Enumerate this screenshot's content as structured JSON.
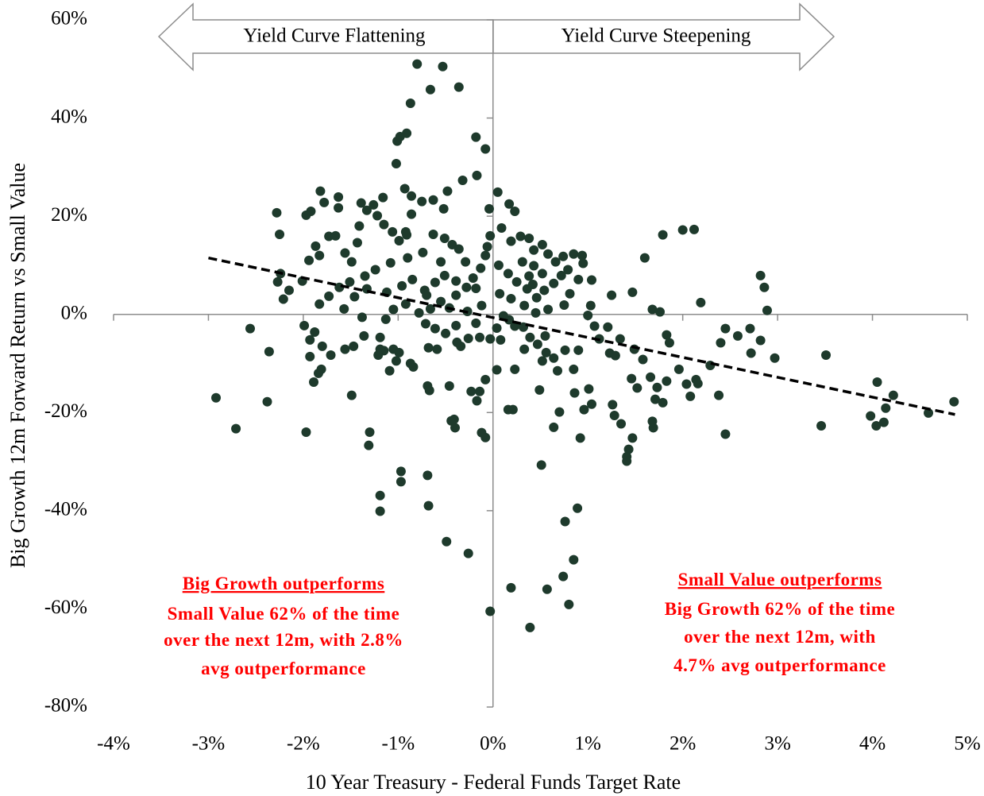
{
  "chart_data": {
    "type": "scatter",
    "xlabel": "10 Year Treasury  - Federal Funds Target Rate",
    "ylabel": "Big Growth  12m Forward Return vs Small Value",
    "xlim": [
      -4,
      5
    ],
    "ylim": [
      -80,
      60
    ],
    "xticks": [
      {
        "value": -4,
        "label": "-4%"
      },
      {
        "value": -3,
        "label": "-3%"
      },
      {
        "value": -2,
        "label": "-2%"
      },
      {
        "value": -1,
        "label": "-1%"
      },
      {
        "value": 0,
        "label": "0%"
      },
      {
        "value": 1,
        "label": "1%"
      },
      {
        "value": 2,
        "label": "2%"
      },
      {
        "value": 3,
        "label": "3%"
      },
      {
        "value": 4,
        "label": "4%"
      },
      {
        "value": 5,
        "label": "5%"
      }
    ],
    "yticks": [
      {
        "value": -80,
        "label": "-80%"
      },
      {
        "value": -60,
        "label": "-60%"
      },
      {
        "value": -40,
        "label": "-40%"
      },
      {
        "value": -20,
        "label": "-20%"
      },
      {
        "value": 0,
        "label": "0%"
      },
      {
        "value": 20,
        "label": "20%"
      },
      {
        "value": 40,
        "label": "40%"
      },
      {
        "value": 60,
        "label": "60%"
      }
    ],
    "color": "#1e3a2c",
    "x": [
      -2.92,
      -2.71,
      -2.56,
      -2.38,
      -2.36,
      -2.28,
      -2.25,
      -1.97,
      -1.3,
      -1.31,
      -1.19,
      -1.19,
      -0.97,
      -0.97,
      -0.69,
      -0.68,
      -0.49,
      -0.26,
      -0.03,
      0.19,
      0.39,
      0.51,
      0.57,
      0.74,
      0.76,
      0.8,
      0.85,
      0.89,
      -0.8,
      -0.53,
      -0.36,
      -0.66,
      -0.87,
      -0.91,
      -0.98,
      -1.01,
      -1.02,
      -0.32,
      -0.17,
      -0.18,
      -0.08,
      0.05,
      2.0,
      2.12,
      1.79,
      1.6,
      2.19,
      2.82,
      2.86,
      2.89,
      3.51,
      3.46,
      2.45,
      2.38,
      2.45,
      2.71,
      2.58,
      2.97,
      2.82,
      2.72,
      4.05,
      3.98,
      4.04,
      4.12,
      4.14,
      4.22,
      4.59,
      4.86,
      2.4,
      2.29,
      2.14,
      2.04,
      2.16,
      2.08,
      1.96,
      1.83,
      1.83,
      1.86,
      1.68,
      1.76,
      1.47,
      1.25,
      1.46,
      1.47,
      1.43,
      1.41,
      1.41,
      1.35,
      1.26,
      1.28,
      1.52,
      1.68,
      1.69,
      1.73,
      1.58,
      1.66,
      1.71,
      1.79,
      1.34,
      1.49,
      1.21,
      1.07,
      1.03,
      1,
      1.12,
      1.23,
      1.29,
      1.01,
      0.96,
      1.04,
      0.92,
      0.86,
      0.7,
      0.64,
      0.49,
      0.21,
      0.16,
      0.23,
      0.04,
      -0.08,
      -0.14,
      -0.17,
      -0.23,
      -0.08,
      -0.12,
      -0.41,
      -0.44,
      -0.4,
      -0.46,
      -0.69,
      -0.67,
      -0.87,
      -0.84,
      -1.09,
      -1.15,
      -1.19,
      -1.05,
      -1.21,
      -1.02,
      -0.99,
      -1.49,
      -1.56,
      -1.47,
      -1.71,
      -1.84,
      -1.81,
      -1.89,
      -1.8,
      -1.93,
      -1.88,
      -1.93,
      -1.99,
      -1.36,
      -1.38,
      -1.13,
      -1.19,
      -0.71,
      -0.61,
      -0.5,
      -0.38,
      -0.26,
      -0.34,
      -0.59,
      -0.68,
      -0.39,
      -0.18,
      -0.14,
      -0.03,
      0.04,
      0.11,
      0.17,
      0.23,
      0.32,
      0.39,
      0.47,
      0.55,
      0.56,
      0.64,
      0.76,
      0.9,
      0.85,
      0.68,
      0.52,
      0.33,
      0.08,
      -2.24,
      -2.27,
      -2.15,
      -2.21,
      -2.01,
      -1.94,
      -1.83,
      -1.97,
      -1.92,
      -1.82,
      -1.78,
      -1.63,
      -1.63,
      -1.73,
      -1.66,
      -1.87,
      -1.56,
      -1.49,
      -1.41,
      -1.43,
      -1.39,
      -1.33,
      -1.26,
      -1.16,
      -1.22,
      -1.15,
      -1.06,
      -0.99,
      -0.92,
      -0.93,
      -0.86,
      -0.75,
      -0.63,
      -0.48,
      -0.52,
      -0.86,
      -0.91,
      -0.63,
      -0.51,
      -0.43,
      -0.36,
      -0.29,
      -0.55,
      -0.74,
      -0.9,
      -1.08,
      -1.24,
      -1.35,
      -1.51,
      -1.62,
      -1.73,
      -1.83,
      -1.57,
      -1.46,
      -1.33,
      -1.12,
      -0.96,
      -0.85,
      -0.72,
      -0.61,
      -0.51,
      -0.39,
      -0.28,
      -0.21,
      -0.13,
      -0.08,
      -0.06,
      -0.03,
      -0.04,
      0.17,
      0.23,
      0.09,
      0.19,
      0.29,
      0.38,
      0.43,
      0.52,
      0.58,
      0.66,
      0.74,
      0.85,
      0.94,
      0.95,
      1.04,
      0.9,
      0.79,
      0.72,
      0.64,
      0.54,
      0.46,
      0.36,
      0.25,
      0.16,
      0.06,
      0.07,
      0.19,
      0.33,
      0.45,
      0.58,
      0.75,
      0.81,
      -0.12,
      -0.27,
      -0.46,
      -0.55,
      -0.66,
      -0.78,
      -0.92,
      -1.05,
      -0.7,
      -0.39,
      -0.18,
      0.43,
      0.38,
      0.31,
      0.42,
      0.52
    ],
    "values": [
      -17,
      -23.3,
      -2.9,
      -17.8,
      -7.6,
      20.7,
      16.3,
      -24,
      -24,
      -26.7,
      -36.9,
      -40.1,
      -32,
      -34.1,
      -32.8,
      -39,
      -46.3,
      -48.7,
      -60.5,
      -55.7,
      -63.8,
      -30.7,
      -56,
      -53.4,
      -42.2,
      -59.1,
      -50,
      -39.5,
      51,
      50.5,
      46.3,
      45.8,
      43,
      36.9,
      36.2,
      35.3,
      30.7,
      27.3,
      28.3,
      36.1,
      33.7,
      24.9,
      17.2,
      17.3,
      16.2,
      11.5,
      2.4,
      7.9,
      5.5,
      0.8,
      -8.3,
      -22.7,
      -24.4,
      -16.5,
      -2.9,
      -2.9,
      -4.4,
      -8.9,
      -5.3,
      -7.9,
      -13.8,
      -20.7,
      -22.7,
      -22,
      -19.1,
      -16.5,
      -20.1,
      -17.8,
      -5.8,
      -10.4,
      -13.3,
      -14.2,
      -14.1,
      -16.7,
      -11.2,
      -13.6,
      -4.2,
      -5.8,
      1,
      0.5,
      4.5,
      3.9,
      -13.1,
      -25.2,
      -27.5,
      -29,
      -29.9,
      -22.3,
      -18.4,
      -20.6,
      -15,
      -21.8,
      -23.1,
      -14.9,
      -9.2,
      -12.8,
      -17.3,
      -18,
      -5,
      -7.1,
      -2.6,
      -2.4,
      1.8,
      -0.2,
      -5,
      -7.9,
      -8.4,
      -15.2,
      -19.4,
      -18.3,
      -25.2,
      -16,
      -19.9,
      -23,
      -15.4,
      -19.4,
      -19.4,
      -11.2,
      -11.3,
      -13.3,
      -15.7,
      -17.6,
      -15.7,
      -25.1,
      -24.1,
      -21.4,
      -21.7,
      -23.1,
      -14.6,
      -14.6,
      -15.5,
      -10,
      -10.7,
      -11.5,
      -7.4,
      -7.1,
      -7.1,
      -8.3,
      -9.5,
      -7.8,
      -16.5,
      -7.1,
      -6.5,
      -8.3,
      -12,
      -11.2,
      -13.8,
      -6.5,
      -8.6,
      -3.6,
      -5.2,
      -2.3,
      -4.4,
      -0.6,
      -1,
      -4.7,
      -1.9,
      -2.9,
      -3.9,
      -5.7,
      -4.9,
      -6.5,
      -7.1,
      -6.8,
      -2.3,
      -1.8,
      -4.7,
      -5,
      -2.8,
      -0.3,
      -1.1,
      -2.4,
      -2.6,
      -4.7,
      -6.1,
      -4.4,
      -7.8,
      -8.9,
      -7.3,
      -7.3,
      -11.2,
      -11.5,
      -9.5,
      -7.1,
      -5.2,
      8.3,
      6.6,
      4.9,
      3.1,
      6.8,
      11,
      12,
      20.2,
      21,
      25.1,
      22.8,
      23.9,
      21.7,
      15.9,
      16,
      13.9,
      12.5,
      10.7,
      18,
      14.6,
      22.7,
      21.2,
      22.3,
      23.8,
      20.1,
      18.3,
      16.8,
      15,
      16.8,
      25.6,
      24.1,
      23,
      23.3,
      25.1,
      21.5,
      20.4,
      16.2,
      16.3,
      15.5,
      14.2,
      13.3,
      10.7,
      10.7,
      12.6,
      11.5,
      10.5,
      9.1,
      7.8,
      6.6,
      5.5,
      3.7,
      2.1,
      1.1,
      3.6,
      5.2,
      4.5,
      5.8,
      7.1,
      4.9,
      6.5,
      7.9,
      6.8,
      5.5,
      7.4,
      9.4,
      12,
      13.8,
      16,
      21.5,
      22.5,
      21,
      17.6,
      14.9,
      15.9,
      15.5,
      13.1,
      14.2,
      12.3,
      10.7,
      11.8,
      12.3,
      12,
      10.4,
      7,
      7.1,
      9.1,
      7.9,
      6.3,
      4.9,
      3.4,
      5.2,
      6.6,
      8.3,
      10,
      4.2,
      3.2,
      1.8,
      0.3,
      1,
      1.9,
      4.2,
      1.8,
      0.6,
      1.3,
      2.6,
      1.1,
      0.3,
      2.1,
      1,
      3.9,
      3.9,
      5.3,
      9.9,
      7.8,
      10.7,
      6.1,
      8.3
    ],
    "trendline": {
      "x": [
        -3.0,
        4.87
      ],
      "values": [
        11.5,
        -20.4
      ],
      "color": "#000000"
    },
    "arrows": [
      "Yield Curve Flattening",
      "Yield Curve Steepening"
    ],
    "annotations": {
      "left": [
        "Big Growth outperforms",
        "Small Value 62% of the time",
        "over the next 12m, with 2.8%",
        "avg outperformance"
      ],
      "right": [
        "Small Value outperforms",
        "Big Growth 62% of the time",
        "over the next 12m, with",
        "4.7% avg outperformance"
      ]
    }
  }
}
